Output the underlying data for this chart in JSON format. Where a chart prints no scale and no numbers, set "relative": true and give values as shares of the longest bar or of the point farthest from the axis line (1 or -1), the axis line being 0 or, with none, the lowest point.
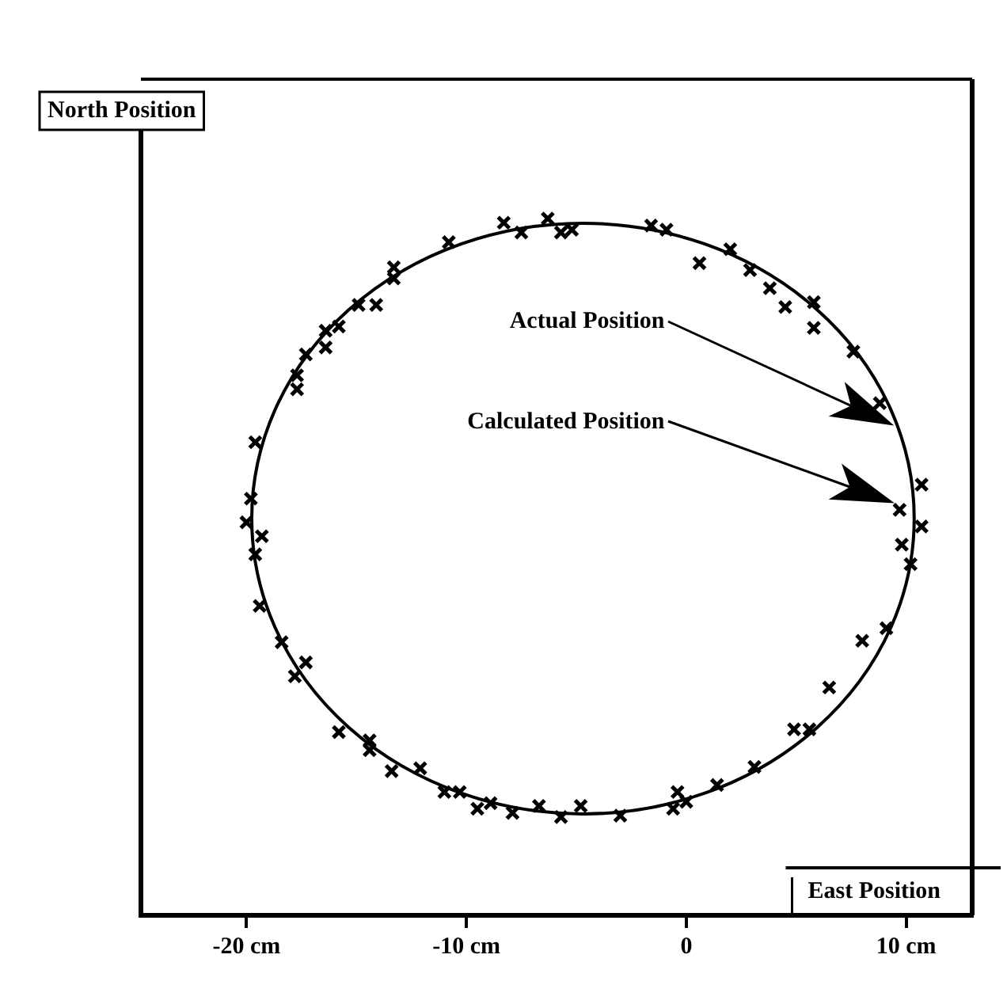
{
  "chart_data": {
    "type": "scatter",
    "xlabel": "East Position",
    "ylabel": "North Position",
    "relative": true,
    "marker": "cross",
    "legend": false,
    "grid": false,
    "xlim": [
      -24.8,
      13
    ],
    "xticks": [
      {
        "value": -20,
        "label": "-20 cm"
      },
      {
        "value": -10,
        "label": "-10 cm"
      },
      0,
      {
        "value": 10,
        "label": "10 cm"
      }
    ],
    "annotations": [
      "Actual Position",
      "Calculated Position"
    ],
    "series": [
      {
        "type": "scatter",
        "color": "#000000",
        "x": [
          -8.3,
          -7.5,
          -6.3,
          -5.7,
          -5.2,
          -10.8,
          -13.3,
          -13.3,
          -14.9,
          -14.1,
          -15.8,
          -16.4,
          -16.4,
          -17.3,
          -17.7,
          -17.7,
          -19.6,
          -19.8,
          -20.0,
          -19.3,
          -19.6,
          -19.4,
          -18.4,
          -17.3,
          -17.8,
          -15.8,
          -14.4,
          -14.4,
          -13.4,
          -12.1,
          -11.0,
          -10.3,
          -9.5,
          -8.9,
          -7.9,
          -6.7,
          -5.7,
          -4.8,
          -3.0,
          -0.6,
          -0.4,
          0.0,
          1.4,
          3.1,
          4.9,
          5.6,
          6.5,
          8.0,
          9.1,
          10.2,
          9.8,
          10.7,
          9.7,
          10.7,
          8.8,
          7.6,
          5.8,
          5.8,
          4.5,
          3.8,
          2.9,
          2.0,
          0.6,
          -0.9,
          -1.6
        ],
        "values": [
          0.994,
          0.98,
          1.0,
          0.98,
          0.984,
          0.966,
          0.93,
          0.914,
          0.876,
          0.876,
          0.845,
          0.839,
          0.815,
          0.805,
          0.775,
          0.755,
          0.679,
          0.598,
          0.564,
          0.544,
          0.518,
          0.444,
          0.392,
          0.363,
          0.343,
          0.263,
          0.251,
          0.237,
          0.207,
          0.211,
          0.177,
          0.177,
          0.153,
          0.161,
          0.147,
          0.157,
          0.141,
          0.157,
          0.143,
          0.153,
          0.177,
          0.163,
          0.187,
          0.213,
          0.267,
          0.267,
          0.327,
          0.394,
          0.412,
          0.504,
          0.532,
          0.558,
          0.582,
          0.618,
          0.735,
          0.809,
          0.843,
          0.88,
          0.873,
          0.9,
          0.926,
          0.956,
          0.936,
          0.984,
          0.99
        ]
      }
    ]
  }
}
